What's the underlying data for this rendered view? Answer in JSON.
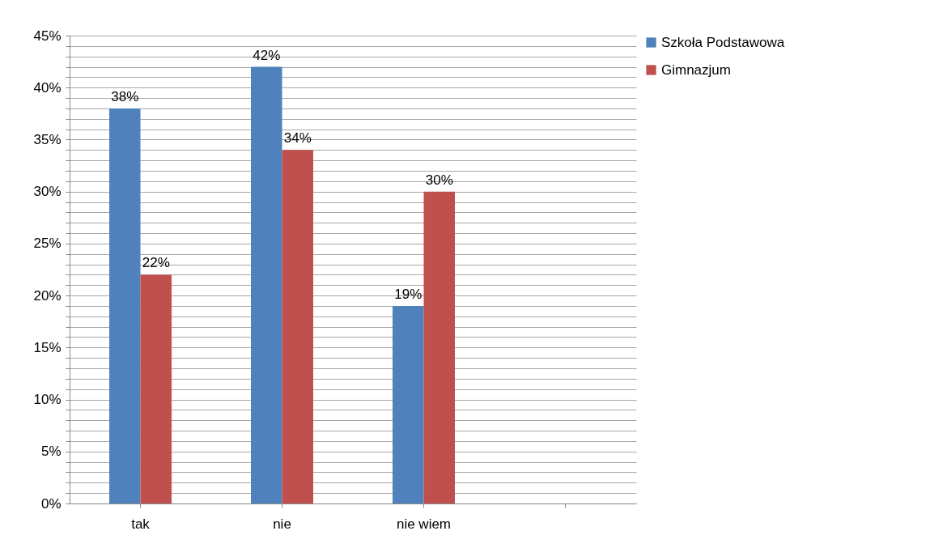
{
  "chart_data": {
    "type": "bar",
    "categories": [
      "tak",
      "nie",
      "nie wiem",
      null
    ],
    "series": [
      {
        "name": "Szkoła Podstawowa",
        "color": "#4f81bd",
        "values": [
          38,
          42,
          19,
          null
        ],
        "value_labels": [
          "38%",
          "42%",
          "19%",
          null
        ]
      },
      {
        "name": "Gimnazjum",
        "color": "#c0504d",
        "values": [
          22,
          34,
          30,
          null
        ],
        "value_labels": [
          "22%",
          "34%",
          "30%",
          null
        ]
      }
    ],
    "ylim": [
      0,
      45
    ],
    "yticks": [
      {
        "value": 0,
        "label": "0%"
      },
      {
        "value": 1,
        "label": null
      },
      {
        "value": 2,
        "label": null
      },
      {
        "value": 3,
        "label": null
      },
      {
        "value": 4,
        "label": null
      },
      {
        "value": 5,
        "label": "5%"
      },
      {
        "value": 6,
        "label": null
      },
      {
        "value": 7,
        "label": null
      },
      {
        "value": 8,
        "label": null
      },
      {
        "value": 9,
        "label": null
      },
      {
        "value": 10,
        "label": "10%"
      },
      {
        "value": 11,
        "label": null
      },
      {
        "value": 12,
        "label": null
      },
      {
        "value": 13,
        "label": null
      },
      {
        "value": 14,
        "label": null
      },
      {
        "value": 15,
        "label": "15%"
      },
      {
        "value": 16,
        "label": null
      },
      {
        "value": 17,
        "label": null
      },
      {
        "value": 18,
        "label": null
      },
      {
        "value": 19,
        "label": null
      },
      {
        "value": 20,
        "label": "20%"
      },
      {
        "value": 21,
        "label": null
      },
      {
        "value": 22,
        "label": null
      },
      {
        "value": 23,
        "label": null
      },
      {
        "value": 24,
        "label": null
      },
      {
        "value": 25,
        "label": "25%"
      },
      {
        "value": 26,
        "label": null
      },
      {
        "value": 27,
        "label": null
      },
      {
        "value": 28,
        "label": null
      },
      {
        "value": 29,
        "label": null
      },
      {
        "value": 30,
        "label": "30%"
      },
      {
        "value": 31,
        "label": null
      },
      {
        "value": 32,
        "label": null
      },
      {
        "value": 33,
        "label": null
      },
      {
        "value": 34,
        "label": null
      },
      {
        "value": 35,
        "label": "35%"
      },
      {
        "value": 36,
        "label": null
      },
      {
        "value": 37,
        "label": null
      },
      {
        "value": 38,
        "label": null
      },
      {
        "value": 39,
        "label": null
      },
      {
        "value": 40,
        "label": "40%"
      },
      {
        "value": 41,
        "label": null
      },
      {
        "value": 42,
        "label": null
      },
      {
        "value": 43,
        "label": null
      },
      {
        "value": 44,
        "label": null
      },
      {
        "value": 45,
        "label": "45%"
      }
    ],
    "grid": true,
    "legend": "right"
  }
}
